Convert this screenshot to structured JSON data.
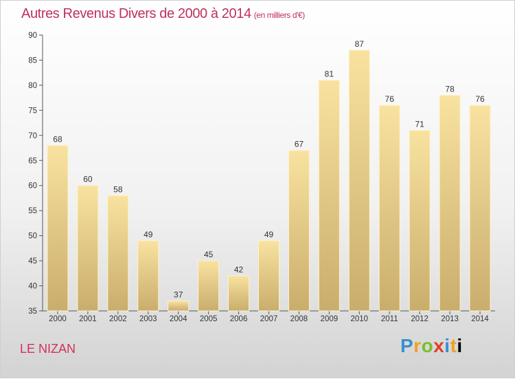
{
  "header": {
    "title": "Autres Revenus Divers de 2000 à 2014",
    "unit": "(en milliers d'€)"
  },
  "footer": {
    "location": "LE NIZAN",
    "brand": "Proxiti"
  },
  "colors": {
    "title": "#c0305a",
    "bar_top": "#f9e2a0",
    "bar_bottom": "#c9ad6c",
    "bar_edge": "#fff3c8"
  },
  "chart_data": {
    "type": "bar",
    "title": "Autres Revenus Divers de 2000 à 2014",
    "subtitle": "(en milliers d'€)",
    "xlabel": "",
    "ylabel": "",
    "categories": [
      "2000",
      "2001",
      "2002",
      "2003",
      "2004",
      "2005",
      "2006",
      "2007",
      "2008",
      "2009",
      "2010",
      "2011",
      "2012",
      "2013",
      "2014"
    ],
    "values": [
      68,
      60,
      58,
      49,
      37,
      45,
      42,
      49,
      67,
      81,
      87,
      76,
      71,
      78,
      76
    ],
    "ylim": [
      35,
      90
    ],
    "yticks": [
      35,
      40,
      45,
      50,
      55,
      60,
      65,
      70,
      75,
      80,
      85,
      90
    ],
    "grid": false,
    "legend": "none"
  }
}
